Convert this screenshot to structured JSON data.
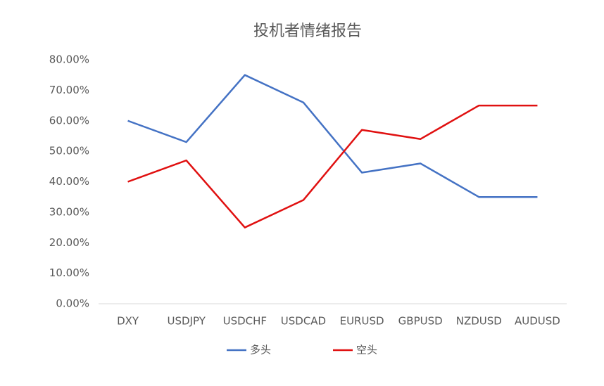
{
  "chart_data": {
    "type": "line",
    "title": "投机者情绪报告",
    "categories": [
      "DXY",
      "USDJPY",
      "USDCHF",
      "USDCAD",
      "EURUSD",
      "GBPUSD",
      "NZDUSD",
      "AUDUSD"
    ],
    "series": [
      {
        "name": "多头",
        "color": "#4472c4",
        "values": [
          60,
          53,
          75,
          66,
          43,
          46,
          35,
          35
        ]
      },
      {
        "name": "空头",
        "color": "#e01010",
        "values": [
          40,
          47,
          25,
          34,
          57,
          54,
          65,
          65
        ]
      }
    ],
    "ylim": [
      0,
      80
    ],
    "yticks": [
      {
        "value": 0,
        "label": "0.00%"
      },
      {
        "value": 10,
        "label": "10.00%"
      },
      {
        "value": 20,
        "label": "20.00%"
      },
      {
        "value": 30,
        "label": "30.00%"
      },
      {
        "value": 40,
        "label": "40.00%"
      },
      {
        "value": 50,
        "label": "50.00%"
      },
      {
        "value": 60,
        "label": "60.00%"
      },
      {
        "value": 70,
        "label": "70.00%"
      },
      {
        "value": 80,
        "label": "80.00%"
      }
    ],
    "grid": false,
    "legend": "bottom"
  }
}
